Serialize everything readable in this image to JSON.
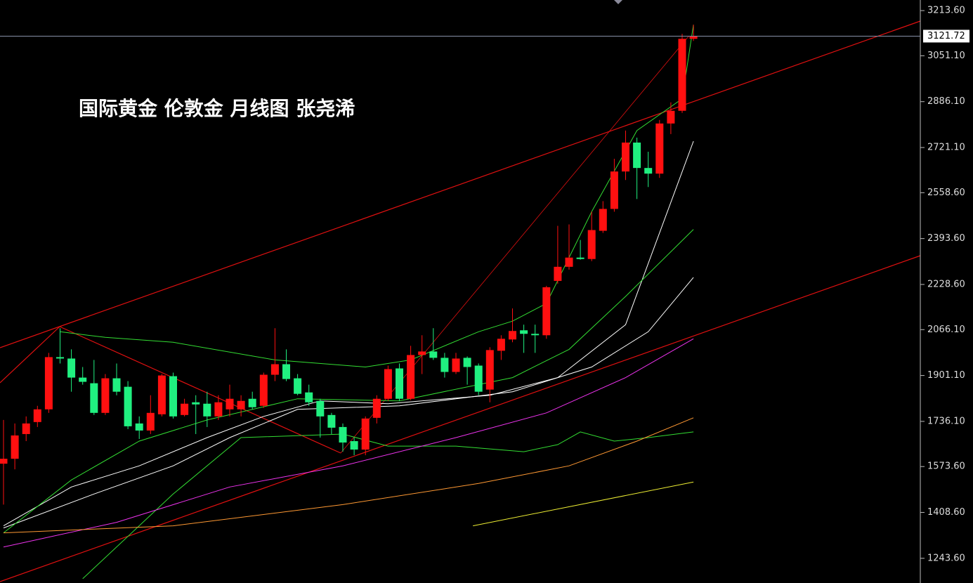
{
  "chart_data": {
    "type": "candlestick",
    "title": "国际黄金 伦敦金  月线图 张尧浠",
    "ylim": [
      1154.8,
      3251.7
    ],
    "yticks": [
      {
        "value": 1243.6,
        "label": "1243.60"
      },
      {
        "value": 1408.6,
        "label": "1408.60"
      },
      {
        "value": 1573.6,
        "label": "1573.60"
      },
      {
        "value": 1736.1,
        "label": "1736.10"
      },
      {
        "value": 1901.1,
        "label": "1901.10"
      },
      {
        "value": 2066.1,
        "label": "2066.10"
      },
      {
        "value": 2228.6,
        "label": "2228.60"
      },
      {
        "value": 2393.6,
        "label": "2393.60"
      },
      {
        "value": 2558.6,
        "label": "2558.60"
      },
      {
        "value": 2721.1,
        "label": "2721.10"
      },
      {
        "value": 2886.1,
        "label": "2886.10"
      },
      {
        "value": 3051.1,
        "label": "3051.10"
      },
      {
        "value": 3213.6,
        "label": "3213.60"
      }
    ],
    "last_price": 3121.72,
    "up_color": "#ff1010",
    "down_color": "#20f080",
    "open": [
      1583.9,
      1601.7,
      1690.5,
      1733.7,
      1779.4,
      1967.2,
      1962.1,
      1893.6,
      1873.3,
      1766.7,
      1891.1,
      1860.6,
      1728.6,
      1703.2,
      1761.6,
      1898.7,
      1759.1,
      1804.8,
      1799.7,
      1754.0,
      1779.4,
      1779.4,
      1817.4,
      1792.1,
      1903.8,
      1941.8,
      1891.1,
      1840.3,
      1809.8,
      1759.1,
      1715.9,
      1665.1,
      1634.7,
      1748.9,
      1817.4,
      1926.6,
      1817.4,
      1974.8,
      1987.5,
      1964.7,
      1913.9,
      1964.7,
      1936.7,
      1850.5,
      1990.1,
      2030.7,
      2063.7,
      2051.0,
      2045.9,
      2241.4,
      2292.1,
      2325.2,
      2320.1,
      2421.6,
      2500.3,
      2634.9,
      2738.9,
      2647.5,
      2627.2,
      2807.5,
      2853.2,
      3112.1
    ],
    "high": [
      1741.3,
      1728.6,
      1754.0,
      1792.1,
      1982.5,
      2071.3,
      1995.2,
      1931.7,
      1957.1,
      1906.3,
      1944.4,
      1880.9,
      1754.0,
      1830.1,
      1906.3,
      1911.4,
      1817.4,
      1830.1,
      1842.8,
      1830.1,
      1868.2,
      1830.1,
      1842.8,
      1911.4,
      2071.3,
      1995.2,
      1906.3,
      1868.2,
      1817.4,
      1766.7,
      1728.6,
      1677.8,
      1754.0,
      1830.1,
      1936.7,
      1944.4,
      2007.9,
      2045.9,
      2071.3,
      1982.5,
      1982.5,
      1969.8,
      1944.4,
      2002.8,
      2045.9,
      2142.4,
      2084.0,
      2084.0,
      2223.6,
      2439.4,
      2444.5,
      2388.6,
      2490.2,
      2528.2,
      2680.5,
      2782.1,
      2756.7,
      2705.9,
      2820.2,
      2883.6,
      3129.9,
      3162.9
    ],
    "low": [
      1436.7,
      1563.6,
      1665.1,
      1715.9,
      1766.7,
      1944.4,
      1842.8,
      1868.2,
      1759.1,
      1759.1,
      1830.1,
      1708.3,
      1672.8,
      1690.5,
      1754.0,
      1746.4,
      1754.0,
      1690.5,
      1715.9,
      1741.3,
      1754.0,
      1754.0,
      1779.4,
      1784.5,
      1880.9,
      1880.9,
      1830.1,
      1792.1,
      1677.8,
      1690.5,
      1627.1,
      1614.4,
      1614.4,
      1728.6,
      1809.8,
      1809.8,
      1812.4,
      1906.3,
      1957.1,
      1893.6,
      1906.3,
      1868.2,
      1830.1,
      1804.8,
      1957.1,
      2020.6,
      1982.5,
      1982.5,
      2033.2,
      2231.2,
      2282.0,
      2317.6,
      2312.5,
      2414.0,
      2490.2,
      2604.4,
      2535.9,
      2579.0,
      2612.0,
      2769.4,
      2845.5,
      3104.5
    ],
    "close": [
      1601.7,
      1685.5,
      1728.6,
      1779.4,
      1967.2,
      1962.1,
      1893.6,
      1878.4,
      1766.7,
      1891.1,
      1842.8,
      1718.4,
      1703.2,
      1766.7,
      1901.2,
      1754.0,
      1799.7,
      1797.1,
      1754.0,
      1804.8,
      1817.4,
      1809.8,
      1787.0,
      1903.8,
      1941.8,
      1888.5,
      1835.2,
      1804.8,
      1754.0,
      1713.4,
      1660.1,
      1634.7,
      1746.4,
      1817.4,
      1924.1,
      1817.4,
      1974.8,
      1987.5,
      1964.7,
      1913.9,
      1962.1,
      1931.7,
      1842.8,
      1992.6,
      2033.2,
      2061.2,
      2051.0,
      2045.9,
      2218.5,
      2292.1,
      2325.2,
      2320.1,
      2424.2,
      2500.3,
      2634.9,
      2738.9,
      2647.5,
      2627.2,
      2807.5,
      2853.2,
      3112.1,
      3121.72
    ],
    "lines": [
      {
        "color": "#ffffff",
        "x": [
          0,
          6,
          12,
          18,
          23,
          28,
          34,
          43,
          49,
          55,
          61
        ],
        "values": [
          1360.5,
          1500.1,
          1576.3,
          1677.8,
          1754.0,
          1809.8,
          1799.7,
          1830.1,
          1893.6,
          2084.0,
          2744.0
        ]
      },
      {
        "color": "#ffffff",
        "x": [
          0,
          8,
          15,
          20,
          26,
          35,
          45,
          52,
          57,
          61
        ],
        "values": [
          1352.9,
          1474.8,
          1576.3,
          1677.8,
          1779.4,
          1792.1,
          1842.8,
          1931.7,
          2058.6,
          2254.1
        ]
      },
      {
        "color": "#33dd33",
        "x": [
          0,
          6,
          12,
          18,
          26,
          35,
          45,
          50,
          55,
          61
        ],
        "values": [
          1335.2,
          1525.5,
          1665.1,
          1741.3,
          1817.4,
          1809.8,
          1893.6,
          1995.2,
          2185.5,
          2426.7
        ]
      },
      {
        "color": "#33dd33",
        "x": [
          5,
          9,
          15,
          24,
          32,
          36,
          42,
          45,
          48,
          52,
          56,
          60,
          61
        ],
        "values": [
          2058.6,
          2038.3,
          2020.6,
          1957.1,
          1931.7,
          1957.1,
          2058.6,
          2096.7,
          2160.2,
          2490.2,
          2782.1,
          2896.4,
          3162.9
        ]
      },
      {
        "color": "#33dd33",
        "x": [
          7,
          15,
          21,
          30,
          34,
          40,
          46,
          49,
          51,
          54,
          57,
          61
        ],
        "values": [
          1170.1,
          1474.8,
          1677.8,
          1690.5,
          1647.3,
          1647.3,
          1627.1,
          1652.5,
          1698.2,
          1665.1,
          1677.8,
          1698.2
        ]
      },
      {
        "color": "#ee33ee",
        "x": [
          0,
          10,
          20,
          30,
          40,
          48,
          55,
          61
        ],
        "values": [
          1284.4,
          1373.2,
          1500.1,
          1576.3,
          1677.8,
          1766.7,
          1893.6,
          2033.2
        ]
      },
      {
        "color": "#ff9933",
        "x": [
          0,
          15,
          30,
          42,
          50,
          56,
          61
        ],
        "values": [
          1335.2,
          1360.5,
          1436.7,
          1512.8,
          1576.3,
          1665.1,
          1748.9
        ]
      },
      {
        "color": "#eeee33",
        "x": [
          41.5,
          61
        ],
        "values": [
          1360.5,
          1517.9
        ]
      }
    ]
  }
}
